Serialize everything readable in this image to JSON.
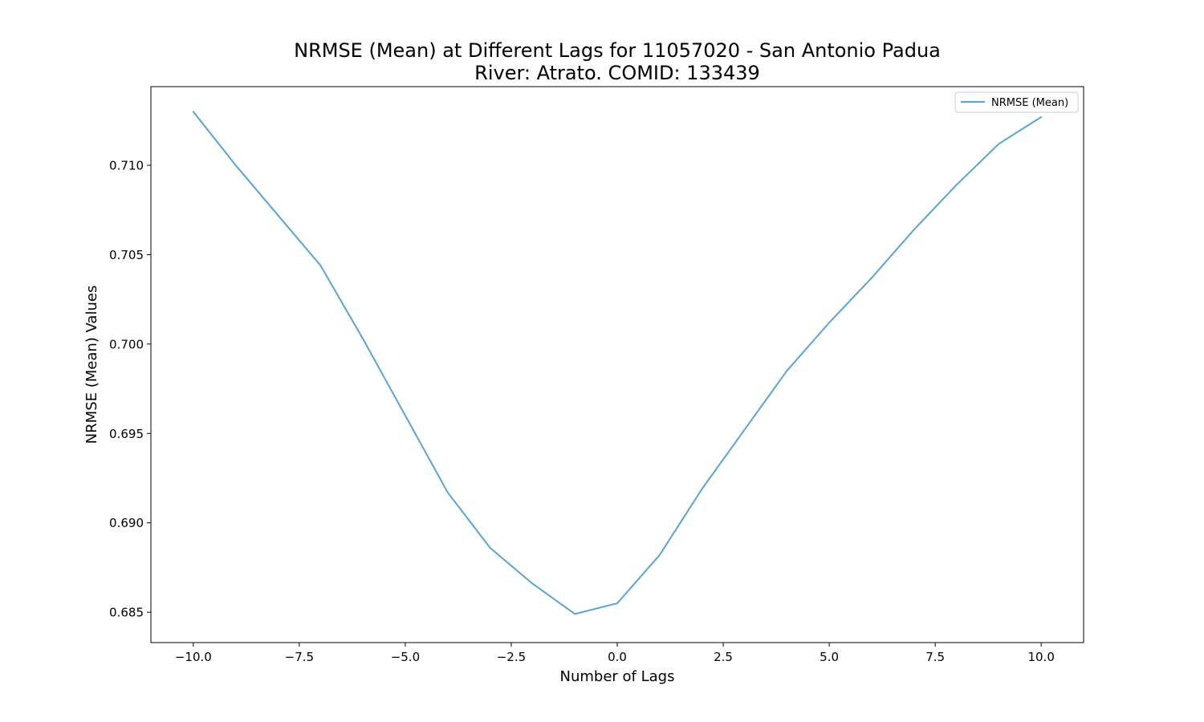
{
  "chart_data": {
    "type": "line",
    "title": "NRMSE (Mean) at Different Lags for 11057020 - San Antonio Padua",
    "subtitle": "River: Atrato. COMID: 133439",
    "xlabel": "Number of Lags",
    "ylabel": "NRMSE (Mean) Values",
    "xlim": [
      -11.0,
      11.0
    ],
    "ylim": [
      0.6833,
      0.7144
    ],
    "xticks": [
      -10.0,
      -7.5,
      -5.0,
      -2.5,
      0.0,
      2.5,
      5.0,
      7.5,
      10.0
    ],
    "xtick_labels": [
      "−10.0",
      "−7.5",
      "−5.0",
      "−2.5",
      "0.0",
      "2.5",
      "5.0",
      "7.5",
      "10.0"
    ],
    "yticks": [
      0.685,
      0.69,
      0.695,
      0.7,
      0.705,
      0.71
    ],
    "ytick_labels": [
      "0.685",
      "0.690",
      "0.695",
      "0.700",
      "0.705",
      "0.710"
    ],
    "grid": false,
    "legend_position": "top-right",
    "series": [
      {
        "name": "NRMSE (Mean)",
        "color": "#5ba3d0",
        "x": [
          -10,
          -9,
          -8,
          -7,
          -6,
          -5,
          -4,
          -3,
          -2,
          -1,
          0,
          1,
          2,
          3,
          4,
          5,
          6,
          7,
          8,
          9,
          10
        ],
        "y": [
          0.713,
          0.71,
          0.7072,
          0.7044,
          0.7003,
          0.696,
          0.6917,
          0.6886,
          0.6866,
          0.6849,
          0.6855,
          0.6882,
          0.6919,
          0.6952,
          0.6985,
          0.7012,
          0.7037,
          0.7064,
          0.7089,
          0.7112,
          0.7127
        ]
      }
    ]
  }
}
